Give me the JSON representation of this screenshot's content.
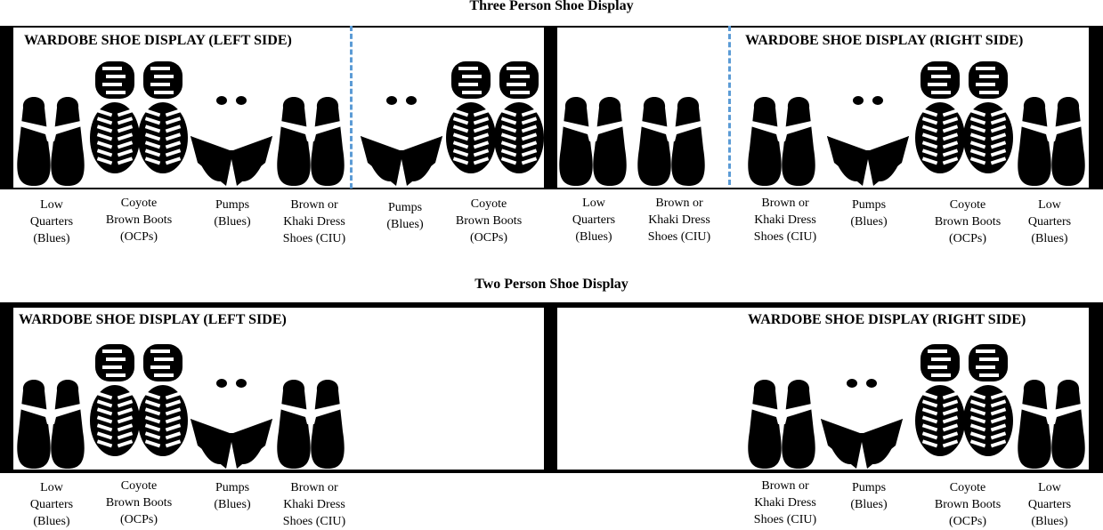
{
  "three_person": {
    "title": "Three Person Shoe Display",
    "left_panel_title": "WARDOBE SHOE DISPLAY (LEFT SIDE)",
    "right_panel_title": "WARDOBE SHOE DISPLAY (RIGHT SIDE)",
    "labels": [
      {
        "l1": "Low",
        "l2": "Quarters",
        "l3": "(Blues)"
      },
      {
        "l1": "Coyote",
        "l2": "Brown Boots",
        "l3": "(OCPs)"
      },
      {
        "l1": "Pumps",
        "l2": "(Blues)",
        "l3": ""
      },
      {
        "l1": "Brown or",
        "l2": "Khaki Dress",
        "l3": "Shoes (CIU)"
      },
      {
        "l1": "Pumps",
        "l2": "(Blues)",
        "l3": ""
      },
      {
        "l1": "Coyote",
        "l2": "Brown Boots",
        "l3": "(OCPs)"
      },
      {
        "l1": "Low",
        "l2": "Quarters",
        "l3": "(Blues)"
      },
      {
        "l1": "Brown or",
        "l2": "Khaki Dress",
        "l3": "Shoes (CIU)"
      },
      {
        "l1": "Brown or",
        "l2": "Khaki Dress",
        "l3": "Shoes (CIU)"
      },
      {
        "l1": "Pumps",
        "l2": "(Blues)",
        "l3": ""
      },
      {
        "l1": "Coyote",
        "l2": "Brown Boots",
        "l3": "(OCPs)"
      },
      {
        "l1": "Low",
        "l2": "Quarters",
        "l3": "(Blues)"
      }
    ]
  },
  "two_person": {
    "title": "Two Person Shoe Display",
    "left_panel_title": "WARDOBE SHOE DISPLAY (LEFT SIDE)",
    "right_panel_title": "WARDOBE SHOE DISPLAY (RIGHT SIDE)",
    "labels": [
      {
        "l1": "Low",
        "l2": "Quarters",
        "l3": "(Blues)"
      },
      {
        "l1": "Coyote",
        "l2": "Brown Boots",
        "l3": "(OCPs)"
      },
      {
        "l1": "Pumps",
        "l2": "(Blues)",
        "l3": ""
      },
      {
        "l1": "Brown or",
        "l2": "Khaki Dress",
        "l3": "Shoes (CIU)"
      },
      {
        "l1": "Brown or",
        "l2": "Khaki Dress",
        "l3": "Shoes (CIU)"
      },
      {
        "l1": "Pumps",
        "l2": "(Blues)",
        "l3": ""
      },
      {
        "l1": "Coyote",
        "l2": "Brown Boots",
        "l3": "(OCPs)"
      },
      {
        "l1": "Low",
        "l2": "Quarters",
        "l3": "(Blues)"
      }
    ]
  },
  "colors": {
    "shoe": "#000000",
    "divider": "#5b9bd5"
  }
}
